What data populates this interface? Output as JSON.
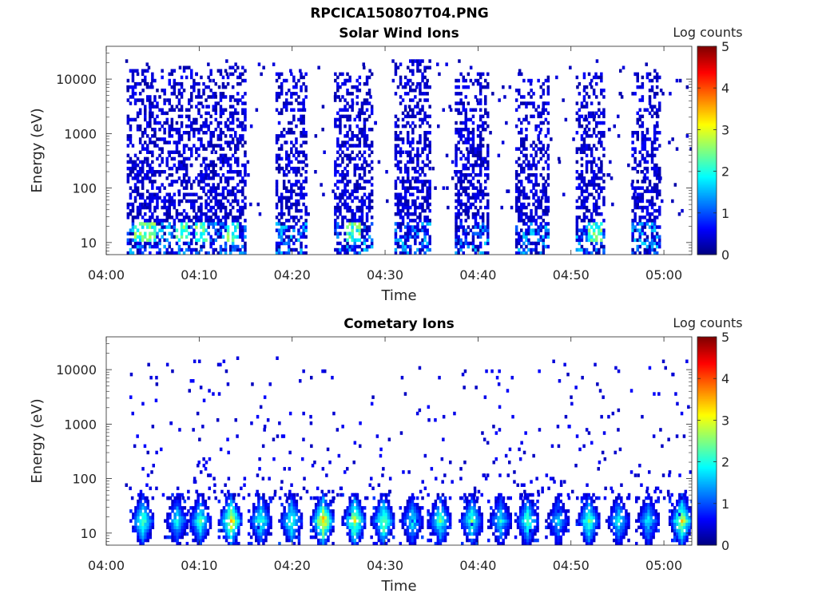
{
  "figure": {
    "title": "RPCICA150807T04.PNG"
  },
  "chart_data": [
    {
      "type": "heatmap",
      "title": "Solar Wind Ions",
      "xlabel": "Time",
      "ylabel": "Energy (eV)",
      "x_ticks": [
        "04:00",
        "04:10",
        "04:20",
        "04:30",
        "04:40",
        "04:50",
        "05:00"
      ],
      "x_range": [
        "04:00",
        "05:03"
      ],
      "y_scale": "log",
      "y_ticks": [
        "10",
        "100",
        "1000",
        "10000"
      ],
      "y_range": [
        6,
        40000
      ],
      "colorbar": {
        "label": "Log counts",
        "range": [
          0,
          5
        ],
        "ticks": [
          "0",
          "1",
          "2",
          "3",
          "4",
          "5"
        ],
        "colormap": "jet"
      },
      "bursts": [
        {
          "start_min": 2.2,
          "end_min": 14.8,
          "emax": 20000,
          "hot": [
            3.5,
            4.5,
            8,
            10,
            13.5
          ]
        },
        {
          "start_min": 18.2,
          "end_min": 21.5,
          "emax": 15000,
          "hot": []
        },
        {
          "start_min": 24.5,
          "end_min": 28.5,
          "emax": 15000,
          "hot": [
            26.5
          ]
        },
        {
          "start_min": 31.0,
          "end_min": 34.8,
          "emax": 25000,
          "hot": []
        },
        {
          "start_min": 37.5,
          "end_min": 41.0,
          "emax": 15000,
          "hot": []
        },
        {
          "start_min": 44.0,
          "end_min": 47.5,
          "emax": 15000,
          "hot": []
        },
        {
          "start_min": 50.5,
          "end_min": 53.5,
          "emax": 15000,
          "hot": [
            52.5
          ]
        },
        {
          "start_min": 56.5,
          "end_min": 59.5,
          "emax": 15000,
          "hot": []
        }
      ]
    },
    {
      "type": "heatmap",
      "title": "Cometary Ions",
      "xlabel": "Time",
      "ylabel": "Energy (eV)",
      "x_ticks": [
        "04:00",
        "04:10",
        "04:20",
        "04:30",
        "04:40",
        "04:50",
        "05:00"
      ],
      "x_range": [
        "04:00",
        "05:03"
      ],
      "y_scale": "log",
      "y_ticks": [
        "10",
        "100",
        "1000",
        "10000"
      ],
      "y_range": [
        6,
        40000
      ],
      "colorbar": {
        "label": "Log counts",
        "range": [
          0,
          5
        ],
        "ticks": [
          "0",
          "1",
          "2",
          "3",
          "4",
          "5"
        ],
        "colormap": "jet"
      },
      "blobs": [
        {
          "time_min": 3.8,
          "level": 2.6
        },
        {
          "time_min": 7.5,
          "level": 2.0
        },
        {
          "time_min": 10.0,
          "level": 2.4
        },
        {
          "time_min": 13.3,
          "level": 3.4
        },
        {
          "time_min": 16.5,
          "level": 2.3
        },
        {
          "time_min": 19.8,
          "level": 2.4
        },
        {
          "time_min": 23.2,
          "level": 3.7
        },
        {
          "time_min": 26.6,
          "level": 3.2
        },
        {
          "time_min": 29.7,
          "level": 2.8
        },
        {
          "time_min": 32.8,
          "level": 2.0
        },
        {
          "time_min": 35.8,
          "level": 2.4
        },
        {
          "time_min": 39.2,
          "level": 2.5
        },
        {
          "time_min": 42.3,
          "level": 2.0
        },
        {
          "time_min": 45.2,
          "level": 2.4
        },
        {
          "time_min": 48.5,
          "level": 1.7
        },
        {
          "time_min": 51.8,
          "level": 2.6
        },
        {
          "time_min": 55.0,
          "level": 2.0
        },
        {
          "time_min": 58.2,
          "level": 1.9
        },
        {
          "time_min": 61.8,
          "level": 3.2
        }
      ]
    }
  ]
}
